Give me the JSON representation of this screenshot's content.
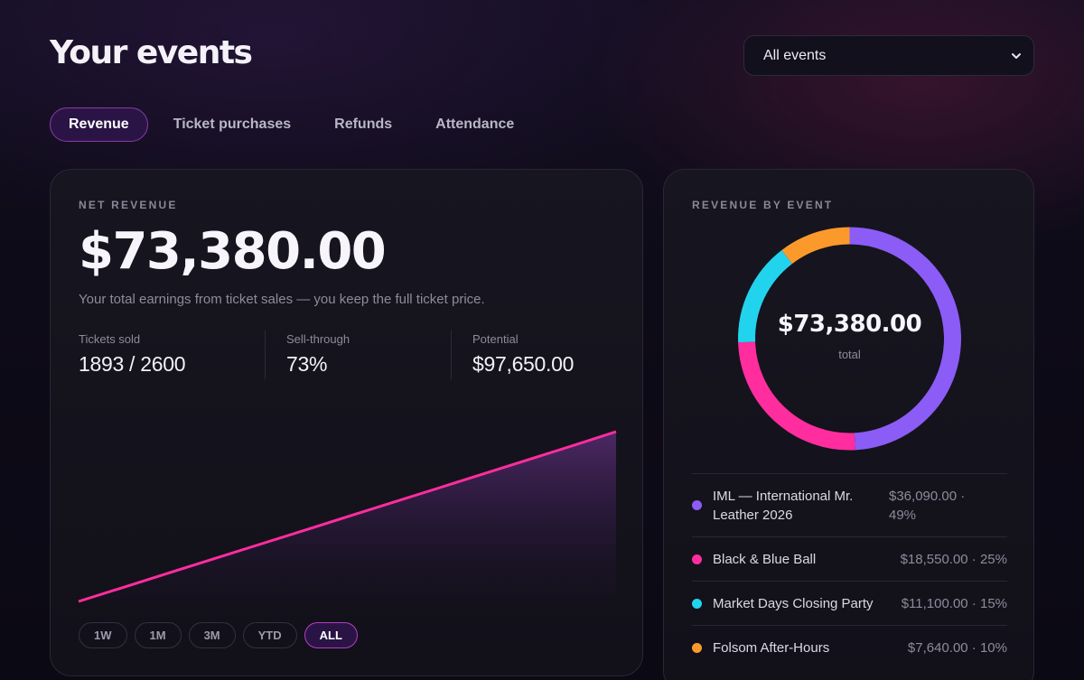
{
  "page": {
    "title": "Your events"
  },
  "event_filter": {
    "selected": "All events",
    "icon": "chevron-down-icon"
  },
  "tabs": [
    {
      "label": "Revenue",
      "active": true
    },
    {
      "label": "Ticket purchases",
      "active": false
    },
    {
      "label": "Refunds",
      "active": false
    },
    {
      "label": "Attendance",
      "active": false
    }
  ],
  "net_revenue": {
    "eyebrow": "NET REVENUE",
    "amount": "$73,380.00",
    "description": "Your total earnings from ticket sales — you keep the full ticket price.",
    "stats": [
      {
        "label": "Tickets sold",
        "value": "1893 / 2600"
      },
      {
        "label": "Sell-through",
        "value": "73%"
      },
      {
        "label": "Potential",
        "value": "$97,650.00"
      }
    ],
    "ranges": [
      {
        "label": "1W",
        "active": false
      },
      {
        "label": "1M",
        "active": false
      },
      {
        "label": "3M",
        "active": false
      },
      {
        "label": "YTD",
        "active": false
      },
      {
        "label": "ALL",
        "active": true
      }
    ]
  },
  "revenue_by_event": {
    "eyebrow": "REVENUE BY EVENT",
    "total": "$73,380.00",
    "total_label": "total",
    "events": [
      {
        "name": "IML — International Mr. Leather 2026",
        "amount": "$36,090.00 · 49%",
        "share": 49,
        "color": "#8b5cf6"
      },
      {
        "name": "Black & Blue Ball",
        "amount": "$18,550.00 · 25%",
        "share": 25,
        "color": "#ff2d9e"
      },
      {
        "name": "Market Days Closing Party",
        "amount": "$11,100.00 · 15%",
        "share": 15,
        "color": "#22d3ee"
      },
      {
        "name": "Folsom After-Hours",
        "amount": "$7,640.00 · 10%",
        "share": 10,
        "color": "#fb9a2b"
      }
    ]
  },
  "chart_data": [
    {
      "type": "area",
      "x": [
        0,
        1,
        2,
        3,
        4,
        5,
        6,
        7,
        8,
        9,
        10,
        11,
        12
      ],
      "series": [
        {
          "values": [
            0,
            6100,
            12200,
            18300,
            24400,
            30500,
            36600,
            42700,
            48800,
            54900,
            61000,
            67150,
            73380
          ]
        }
      ],
      "ylim": [
        0,
        73380
      ],
      "grid": false,
      "color": "#ff2d9e"
    },
    {
      "type": "pie",
      "categories": [
        "IML — International Mr. Leather 2026",
        "Black & Blue Ball",
        "Market Days Closing Party",
        "Folsom After-Hours"
      ],
      "values": [
        36090,
        18550,
        11100,
        7640
      ],
      "colors": [
        "#8b5cf6",
        "#ff2d9e",
        "#22d3ee",
        "#fb9a2b"
      ]
    }
  ]
}
